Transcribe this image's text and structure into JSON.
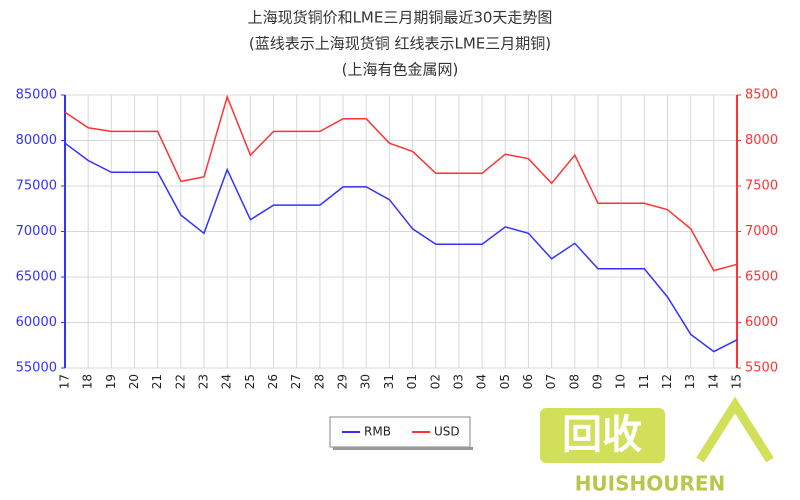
{
  "chart_data": {
    "type": "line",
    "title": "上海现货铜价和LME三月期铜最近30天走势图",
    "subtitle": "(蓝线表示上海现货铜 红线表示LME三月期铜)",
    "source": "(上海有色金属网)",
    "categories": [
      "17",
      "18",
      "19",
      "20",
      "21",
      "22",
      "23",
      "24",
      "25",
      "26",
      "27",
      "28",
      "29",
      "30",
      "31",
      "01",
      "02",
      "03",
      "04",
      "05",
      "06",
      "07",
      "08",
      "09",
      "10",
      "11",
      "12",
      "13",
      "14",
      "15"
    ],
    "series": [
      {
        "name": "RMB",
        "color": "#3333ff",
        "values": [
          79700,
          77800,
          76500,
          76500,
          76500,
          71800,
          69800,
          76800,
          71300,
          72900,
          72900,
          72900,
          74900,
          74900,
          73500,
          70300,
          68600,
          68600,
          68600,
          70500,
          69800,
          67000,
          68700,
          65900,
          65900,
          65900,
          62800,
          58700,
          56800,
          58100
        ]
      },
      {
        "name": "USD",
        "color": "#ff3333",
        "axis": "y2",
        "values": [
          8310,
          8140,
          8100,
          8100,
          8100,
          7550,
          7600,
          8480,
          7840,
          8100,
          8100,
          8100,
          8240,
          8240,
          7970,
          7880,
          7640,
          7640,
          7640,
          7850,
          7800,
          7530,
          7840,
          7310,
          7310,
          7310,
          7240,
          7030,
          6570,
          6640
        ]
      }
    ],
    "ylim": [
      55000,
      85000
    ],
    "yticks": [
      55000,
      60000,
      65000,
      70000,
      75000,
      80000,
      85000
    ],
    "y2lim": [
      5500,
      8500
    ],
    "y2ticks": [
      5500,
      6000,
      6500,
      7000,
      7500,
      8000,
      8500
    ],
    "grid": true,
    "legend": "bottom"
  },
  "watermark": {
    "logo": "回收",
    "text": "HUISHOUREN"
  }
}
